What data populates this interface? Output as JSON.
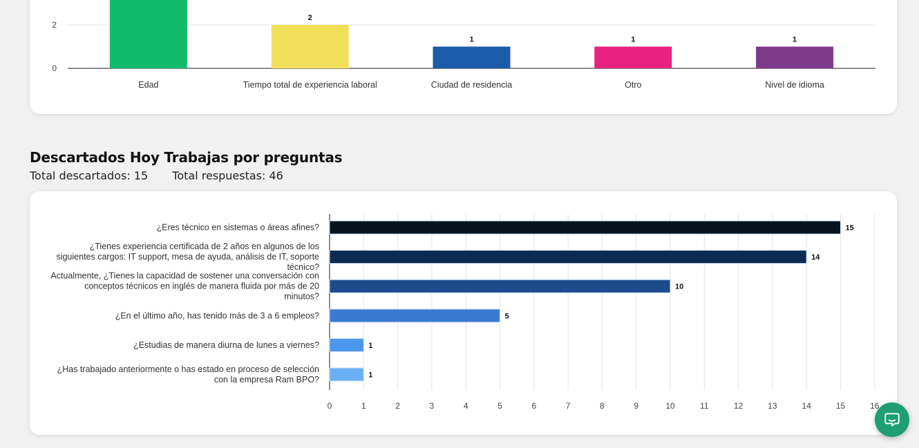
{
  "section": {
    "title": "Descartados Hoy Trabajas por preguntas",
    "total_discarded_label": "Total descartados:",
    "total_discarded_value": "15",
    "total_responses_label": "Total respuestas:",
    "total_responses_value": "46"
  },
  "chat_button": {
    "icon": "chat-bubble-icon"
  },
  "chart_data": [
    {
      "type": "bar",
      "orientation": "vertical",
      "categories": [
        "Edad",
        "Tiempo total de experiencia laboral",
        "Ciudad de residencia",
        "Otro",
        "Nivel de idioma"
      ],
      "values": [
        null,
        2,
        1,
        1,
        1
      ],
      "colors": [
        "#12bb6a",
        "#f2e05a",
        "#1b5caa",
        "#e7237f",
        "#7e3a8a"
      ],
      "y_ticks": [
        "0",
        "2"
      ],
      "grid": true
    },
    {
      "type": "bar",
      "orientation": "horizontal",
      "categories": [
        "¿Eres técnico en sistemas o áreas afines?",
        "¿Tienes experiencia certificada de 2 años en algunos de los siguientes cargos: IT support, mesa de ayuda, análisis de IT, soporte técnico?",
        "Actualmente, ¿Tienes la capacidad de sostener una conversación con conceptos técnicos en inglés de manera fluida por más de 20 minutos?",
        "¿En el último año, has tenido más de 3 a 6 empleos?",
        "¿Estudias de manera diurna de lunes a viernes?",
        "¿Has trabajado anteriormente o has estado en proceso de selección con la empresa Ram BPO?"
      ],
      "values": [
        15,
        14,
        10,
        5,
        1,
        1
      ],
      "colors": [
        "#07131f",
        "#0d2a52",
        "#1d4b8c",
        "#3a7ad2",
        "#4b97ec",
        "#6bb0f5"
      ],
      "xlim": [
        0,
        16
      ],
      "x_ticks": [
        "0",
        "1",
        "2",
        "3",
        "4",
        "5",
        "6",
        "7",
        "8",
        "9",
        "10",
        "11",
        "12",
        "13",
        "14",
        "15",
        "16"
      ],
      "grid": true
    }
  ]
}
